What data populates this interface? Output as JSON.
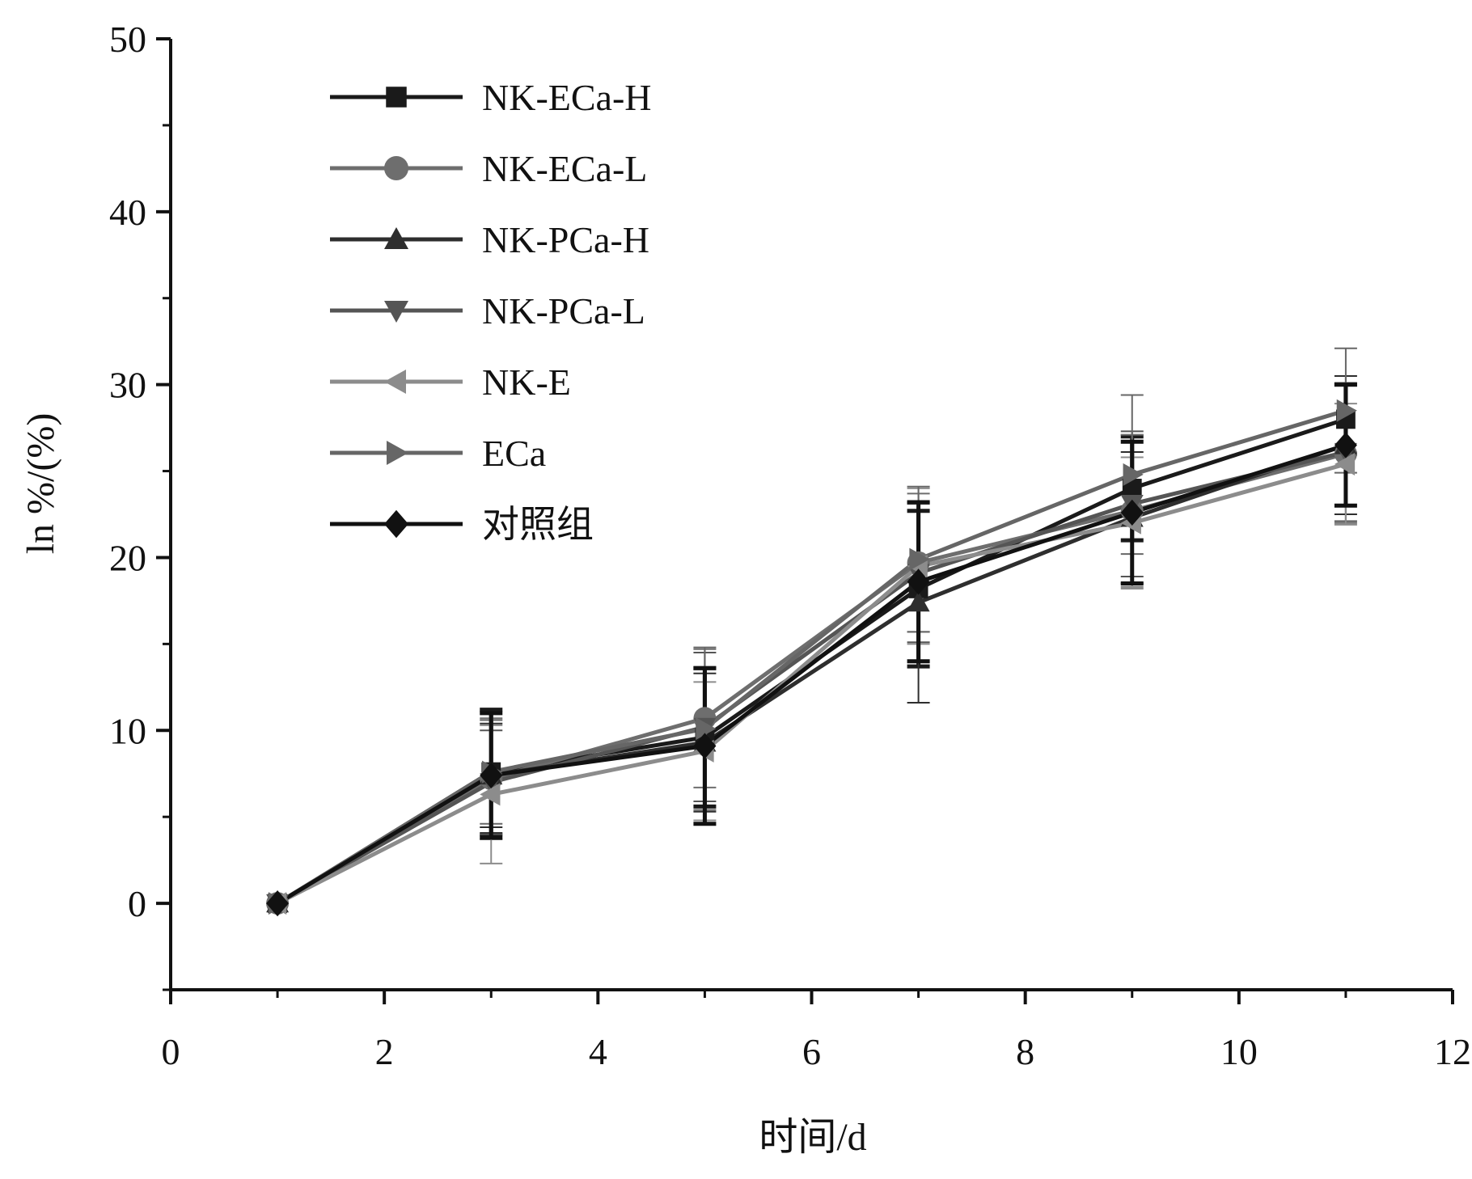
{
  "chart_data": {
    "type": "line",
    "title": "",
    "xlabel": "时间/d",
    "ylabel": "ln %/(%)",
    "xlim": [
      0,
      12
    ],
    "ylim": [
      -5,
      50
    ],
    "x_ticks": [
      "0",
      "2",
      "4",
      "6",
      "8",
      "10",
      "12"
    ],
    "y_ticks": [
      "0",
      "10",
      "20",
      "30",
      "40",
      "50"
    ],
    "grid": false,
    "legend_position": "top-left",
    "x": [
      1,
      3,
      5,
      7,
      9,
      11
    ],
    "series": [
      {
        "name": "NK-ECa-H",
        "marker": "square",
        "color": "#1a1a1a",
        "values": [
          0,
          7.6,
          9.6,
          18.2,
          24.0,
          28.0
        ],
        "errors": [
          0,
          3.6,
          4.0,
          4.5,
          3.0,
          2.0
        ]
      },
      {
        "name": "NK-ECa-L",
        "marker": "circle",
        "color": "#6e6e6e",
        "values": [
          0,
          7.2,
          10.7,
          19.7,
          22.7,
          26.0
        ],
        "errors": [
          0,
          3.5,
          4.0,
          4.0,
          4.4,
          4.0
        ]
      },
      {
        "name": "NK-PCa-H",
        "marker": "triangle-up",
        "color": "#2e2e2e",
        "values": [
          0,
          7.4,
          9.3,
          17.4,
          22.3,
          26.5
        ],
        "errors": [
          0,
          3.0,
          4.0,
          5.8,
          3.8,
          4.0
        ]
      },
      {
        "name": "NK-PCa-L",
        "marker": "triangle-down",
        "color": "#555555",
        "values": [
          0,
          7.0,
          10.2,
          19.1,
          23.1,
          26.1
        ],
        "errors": [
          0,
          3.0,
          4.3,
          4.0,
          4.2,
          4.0
        ]
      },
      {
        "name": "NK-E",
        "marker": "triangle-left",
        "color": "#8c8c8c",
        "values": [
          0,
          6.3,
          8.8,
          19.5,
          22.0,
          25.4
        ],
        "errors": [
          0,
          4.0,
          4.0,
          4.5,
          3.8,
          3.5
        ]
      },
      {
        "name": "ECa",
        "marker": "triangle-right",
        "color": "#666666",
        "values": [
          0,
          7.6,
          10.1,
          19.9,
          24.8,
          28.5
        ],
        "errors": [
          0,
          3.0,
          4.7,
          4.2,
          4.6,
          3.6
        ]
      },
      {
        "name": "对照组",
        "marker": "diamond",
        "color": "#111111",
        "values": [
          0,
          7.4,
          9.1,
          18.6,
          22.6,
          26.5
        ],
        "errors": [
          0,
          3.6,
          4.5,
          4.6,
          4.1,
          3.5
        ]
      }
    ]
  }
}
